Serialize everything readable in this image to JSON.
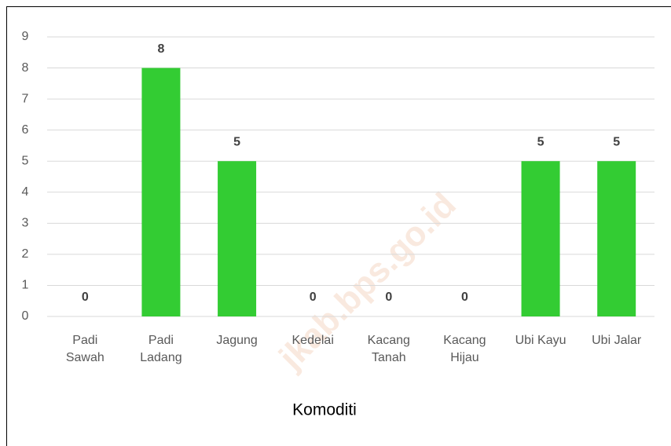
{
  "chart_data": {
    "type": "bar",
    "x_label": "Komoditi",
    "watermark": "jkab.bps.go.id",
    "categories": [
      "Padi\nSawah",
      "Padi\nLadang",
      "Jagung",
      "Kedelai",
      "Kacang\nTanah",
      "Kacang\nHijau",
      "Ubi Kayu",
      "Ubi Jalar"
    ],
    "values": [
      0,
      8,
      5,
      0,
      0,
      0,
      5,
      5
    ],
    "color": "#33cc33",
    "ylim": [
      0,
      9
    ],
    "yticks": [
      0,
      1,
      2,
      3,
      4,
      5,
      6,
      7,
      8,
      9
    ],
    "grid": true
  }
}
